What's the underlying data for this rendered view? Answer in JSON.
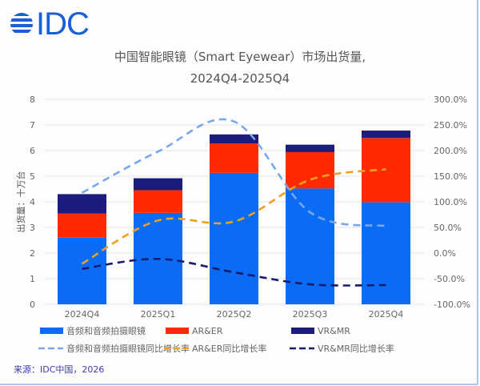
{
  "logo": {
    "text": "IDC"
  },
  "header": {
    "title_line1": "中国智能眼镜（Smart Eyewear）市场出货量,",
    "title_line2": "2024Q4-2025Q4"
  },
  "source": "来源：IDC中国，2026",
  "chart_data": {
    "type": "bar",
    "stacked": true,
    "title": "中国智能眼镜（Smart Eyewear）市场出货量, 2024Q4-2025Q4",
    "ylabel": "出货量：十万台",
    "categories": [
      "2024Q4",
      "2025Q1",
      "2025Q2",
      "2025Q3",
      "2025Q4"
    ],
    "ylim": [
      0,
      8
    ],
    "yticks": [
      "0",
      "1",
      "2",
      "3",
      "4",
      "5",
      "6",
      "7",
      "8"
    ],
    "y2lim": [
      -100,
      300
    ],
    "y2ticks": [
      "-100.0%",
      "-50.0%",
      "0.0%",
      "50.0%",
      "100.0%",
      "150.0%",
      "200.0%",
      "250.0%",
      "300.0%"
    ],
    "grid": true,
    "legend_position": "bottom",
    "series": [
      {
        "name": "音频和音频拍摄眼镜",
        "kind": "bar",
        "color": "#0a6cf5",
        "values": [
          2.6,
          3.57,
          5.13,
          4.52,
          3.98
        ]
      },
      {
        "name": "AR&ER",
        "kind": "bar",
        "color": "#ff2a00",
        "values": [
          0.94,
          0.88,
          1.15,
          1.42,
          2.51
        ]
      },
      {
        "name": "VR&MR",
        "kind": "bar",
        "color": "#1c1c7c",
        "values": [
          0.76,
          0.47,
          0.35,
          0.29,
          0.29
        ]
      },
      {
        "name": "音频和音频拍摄眼镜同比增长率",
        "kind": "line",
        "axis": "right",
        "color": "#79a8ea",
        "values": [
          117.7,
          198.0,
          256.7,
          79.7,
          52.6
        ]
      },
      {
        "name": "AR&ER同比增长率",
        "kind": "line",
        "axis": "right",
        "color": "#f0a020",
        "values": [
          -20.8,
          63.6,
          61.5,
          143.0,
          163.6
        ]
      },
      {
        "name": "VR&MR同比增长率",
        "kind": "line",
        "axis": "right",
        "color": "#1a1a6e",
        "values": [
          -30.8,
          -11.4,
          -37.5,
          -61.0,
          -62.5
        ]
      }
    ]
  }
}
